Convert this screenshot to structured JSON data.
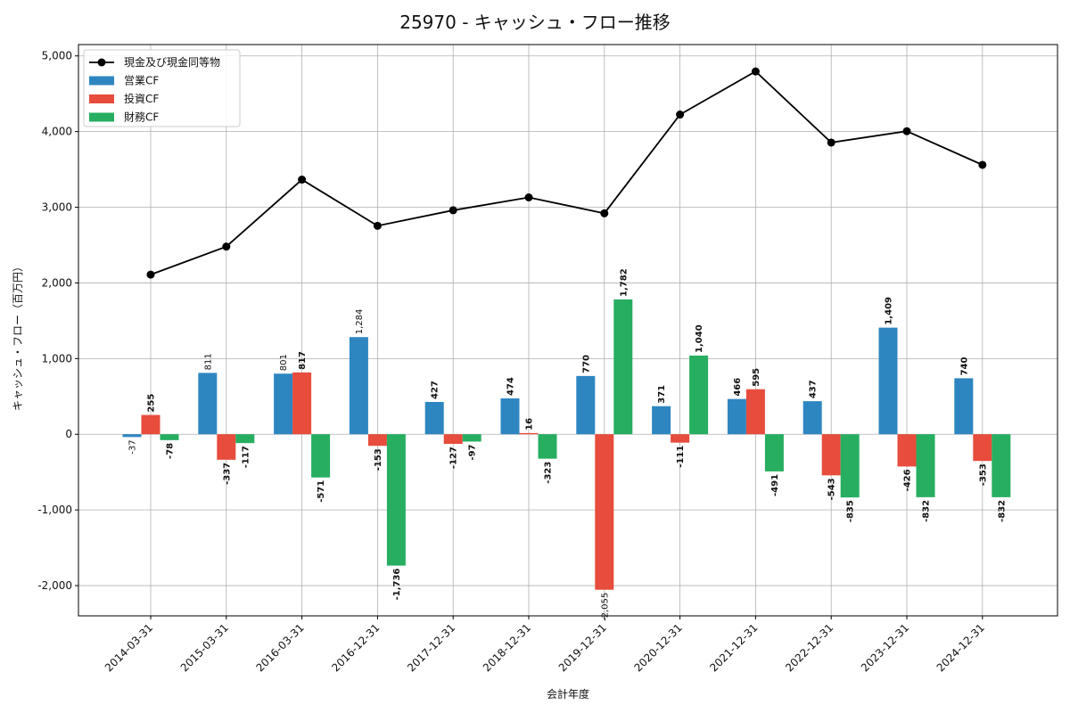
{
  "chart_data": {
    "type": "bar",
    "title": "25970 - キャッシュ・フロー推移",
    "xlabel": "会計年度",
    "ylabel": "キャッシュ・フロー（百万円）",
    "ylim": [
      -2400,
      5150
    ],
    "yticks": [
      -2000,
      -1000,
      0,
      1000,
      2000,
      3000,
      4000,
      5000
    ],
    "ytick_labels": [
      "-2,000",
      "-1,000",
      "0",
      "1,000",
      "2,000",
      "3,000",
      "4,000",
      "5,000"
    ],
    "grid": true,
    "legend_position": "top-left",
    "categories": [
      "2014-03-31",
      "2015-03-31",
      "2016-03-31",
      "2016-12-31",
      "2017-12-31",
      "2018-12-31",
      "2019-12-31",
      "2020-12-31",
      "2021-12-31",
      "2022-12-31",
      "2023-12-31",
      "2024-12-31"
    ],
    "series": [
      {
        "name": "営業CF",
        "kind": "bar",
        "color": "#2e86c1",
        "values": [
          -37,
          811,
          801,
          1284,
          427,
          474,
          770,
          371,
          466,
          437,
          1409,
          740
        ],
        "labels": [
          "-37",
          "811",
          "801",
          "1,284",
          "427",
          "474",
          "770",
          "371",
          "466",
          "437",
          "1,409",
          "740"
        ],
        "bold": [
          false,
          false,
          false,
          false,
          true,
          true,
          true,
          true,
          true,
          true,
          true,
          true
        ]
      },
      {
        "name": "投資CF",
        "kind": "bar",
        "color": "#e74c3c",
        "values": [
          255,
          -337,
          817,
          -153,
          -127,
          16,
          -2055,
          -111,
          595,
          -543,
          -426,
          -353
        ],
        "labels": [
          "255",
          "-337",
          "817",
          "-153",
          "-127",
          "16",
          "-2,055",
          "-111",
          "595",
          "-543",
          "-426",
          "-353"
        ],
        "bold": [
          true,
          true,
          true,
          true,
          true,
          true,
          false,
          true,
          true,
          true,
          true,
          true
        ]
      },
      {
        "name": "財務CF",
        "kind": "bar",
        "color": "#27ae60",
        "values": [
          -78,
          -117,
          -571,
          -1736,
          -97,
          -323,
          1782,
          1040,
          -491,
          -835,
          -832,
          -832
        ],
        "labels": [
          "-78",
          "-117",
          "-571",
          "-1,736",
          "-97",
          "-323",
          "1,782",
          "1,040",
          "-491",
          "-835",
          "-832",
          "-832"
        ],
        "bold": [
          true,
          true,
          true,
          true,
          true,
          true,
          true,
          true,
          true,
          true,
          true,
          true
        ]
      },
      {
        "name": "現金及び現金同等物",
        "kind": "line",
        "color": "#000000",
        "values": [
          2110,
          2480,
          3365,
          2755,
          2960,
          3130,
          2920,
          4225,
          4795,
          3855,
          4005,
          3560
        ]
      }
    ]
  }
}
